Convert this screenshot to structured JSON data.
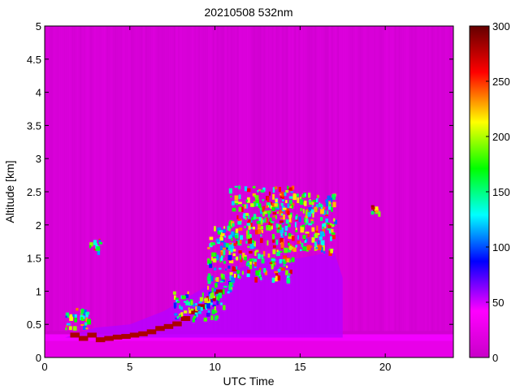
{
  "chart_data": {
    "type": "heatmap",
    "title": "20210508 532nm",
    "xlabel": "UTC Time",
    "ylabel": "Altitude [km]",
    "xlim": [
      0,
      24
    ],
    "ylim": [
      0,
      5
    ],
    "x_ticks": [
      {
        "value": 0,
        "label": "0"
      },
      {
        "value": 5,
        "label": "5"
      },
      {
        "value": 10,
        "label": "10"
      },
      {
        "value": 15,
        "label": "15"
      },
      {
        "value": 20,
        "label": "20"
      }
    ],
    "y_ticks": [
      {
        "value": 0,
        "label": "0"
      },
      {
        "value": 0.5,
        "label": "0.5"
      },
      {
        "value": 1,
        "label": "1"
      },
      {
        "value": 1.5,
        "label": "1.5"
      },
      {
        "value": 2,
        "label": "2"
      },
      {
        "value": 2.5,
        "label": "2.5"
      },
      {
        "value": 3,
        "label": "3"
      },
      {
        "value": 3.5,
        "label": "3.5"
      },
      {
        "value": 4,
        "label": "4"
      },
      {
        "value": 4.5,
        "label": "4.5"
      },
      {
        "value": 5,
        "label": "5"
      }
    ],
    "colorbar": {
      "range": [
        0,
        300
      ],
      "ticks": [
        {
          "value": 0,
          "label": "0"
        },
        {
          "value": 50,
          "label": "50"
        },
        {
          "value": 100,
          "label": "100"
        },
        {
          "value": 150,
          "label": "150"
        },
        {
          "value": 200,
          "label": "200"
        },
        {
          "value": 250,
          "label": "250"
        },
        {
          "value": 300,
          "label": "300"
        }
      ],
      "stops": [
        "#c800c8",
        "#ff00ff",
        "#0000ff",
        "#00ffff",
        "#00ff00",
        "#ffff00",
        "#ff0000",
        "#640000"
      ]
    },
    "background_value": 15,
    "features": [
      {
        "kind": "ground_layer",
        "x": [
          0,
          24
        ],
        "y": [
          0,
          0.3
        ],
        "value": 25
      },
      {
        "kind": "near_field_band",
        "x": [
          0,
          24
        ],
        "y": [
          0.25,
          0.35
        ],
        "value": 45
      },
      {
        "kind": "boundary_layer",
        "x_start": 1.2,
        "x_end": 17.5,
        "top_profile": [
          [
            1.2,
            0.3
          ],
          [
            3,
            0.45
          ],
          [
            5,
            0.5
          ],
          [
            7,
            0.7
          ],
          [
            9,
            1.0
          ],
          [
            11,
            1.3
          ],
          [
            13,
            1.5
          ],
          [
            15,
            1.5
          ],
          [
            17,
            1.6
          ],
          [
            17.5,
            1.2
          ]
        ],
        "value": 55
      },
      {
        "kind": "aerosol_top_edge",
        "value": 280,
        "points": [
          [
            1.5,
            0.35
          ],
          [
            2.0,
            0.3
          ],
          [
            2.5,
            0.35
          ],
          [
            3.0,
            0.28
          ],
          [
            3.5,
            0.3
          ],
          [
            4.0,
            0.32
          ],
          [
            4.5,
            0.33
          ],
          [
            5.0,
            0.35
          ],
          [
            5.5,
            0.37
          ],
          [
            6.0,
            0.4
          ],
          [
            6.5,
            0.45
          ],
          [
            7.0,
            0.48
          ],
          [
            7.5,
            0.52
          ],
          [
            8.0,
            0.6
          ],
          [
            8.5,
            0.7
          ],
          [
            9.0,
            0.78
          ],
          [
            9.5,
            0.9
          ],
          [
            10.0,
            1.0
          ]
        ]
      },
      {
        "kind": "cloud",
        "x": [
          1.2,
          2.5
        ],
        "y": [
          0.45,
          0.75
        ],
        "value": 250
      },
      {
        "kind": "cloud",
        "x": [
          2.6,
          3.2
        ],
        "y": [
          1.6,
          1.8
        ],
        "value": 260
      },
      {
        "kind": "cloud",
        "x": [
          7.5,
          10.5
        ],
        "y": [
          0.6,
          1.0
        ],
        "value": 230
      },
      {
        "kind": "cloud",
        "x": [
          9.5,
          11.0
        ],
        "y": [
          1.0,
          2.0
        ],
        "value": 240
      },
      {
        "kind": "cloud",
        "x": [
          10.8,
          14.5
        ],
        "y": [
          1.2,
          2.6
        ],
        "value": 270
      },
      {
        "kind": "cloud",
        "x": [
          14.2,
          17.0
        ],
        "y": [
          1.6,
          2.5
        ],
        "value": 260
      },
      {
        "kind": "cloud",
        "x": [
          19.0,
          19.6
        ],
        "y": [
          2.2,
          2.3
        ],
        "value": 290
      }
    ]
  }
}
